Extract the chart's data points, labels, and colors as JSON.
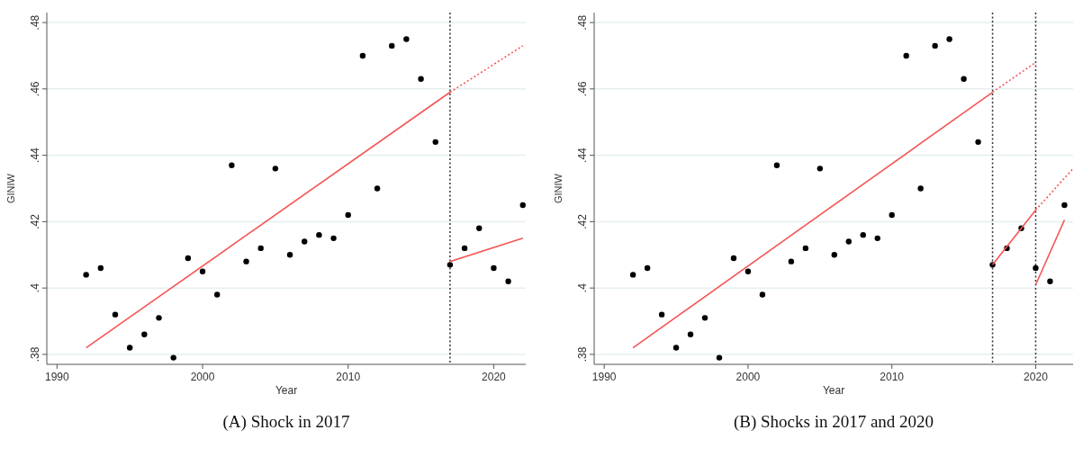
{
  "chart_data": [
    {
      "type": "scatter",
      "title": "(A) Shock in 2017",
      "xlabel": "Year",
      "ylabel": "GINIW",
      "grid": "y",
      "marker": "circle",
      "xlim": [
        1989.3,
        2022.2
      ],
      "xticks": [
        1990,
        2000,
        2010,
        2020
      ],
      "ylim": [
        0.377,
        0.483
      ],
      "yticks": [
        {
          "value": 0.38,
          "label": ".38"
        },
        {
          "value": 0.4,
          "label": ".4"
        },
        {
          "value": 0.42,
          "label": ".42"
        },
        {
          "value": 0.44,
          "label": ".44"
        },
        {
          "value": 0.46,
          "label": ".46"
        },
        {
          "value": 0.48,
          "label": ".48"
        }
      ],
      "ref_lines": [
        {
          "axis": "x",
          "value": 2017,
          "color": "#333333",
          "line_style": "dotted"
        }
      ],
      "series": [
        {
          "type": "scatter",
          "color": "#000000",
          "x": [
            1992,
            1993,
            1994,
            1995,
            1996,
            1997,
            1998,
            1999,
            2000,
            2001,
            2002,
            2003,
            2004,
            2005,
            2006,
            2007,
            2008,
            2009,
            2010,
            2011,
            2012,
            2013,
            2014,
            2015,
            2016,
            2017,
            2018,
            2019,
            2020,
            2021,
            2022
          ],
          "values": [
            0.404,
            0.406,
            0.392,
            0.382,
            0.386,
            0.391,
            0.379,
            0.409,
            0.405,
            0.398,
            0.437,
            0.408,
            0.412,
            0.436,
            0.41,
            0.414,
            0.416,
            0.415,
            0.422,
            0.47,
            0.43,
            0.473,
            0.475,
            0.463,
            0.444,
            0.407,
            0.412,
            0.418,
            0.406,
            0.402,
            0.425
          ]
        },
        {
          "type": "line",
          "marker": "none",
          "color": "#f55555",
          "line_style": "solid",
          "x": [
            1992,
            2017
          ],
          "values": [
            0.382,
            0.459
          ]
        },
        {
          "type": "line",
          "marker": "none",
          "color": "#f55555",
          "line_style": "dotted",
          "x": [
            2017,
            2022
          ],
          "values": [
            0.459,
            0.473
          ]
        },
        {
          "type": "line",
          "marker": "none",
          "color": "#f55555",
          "line_style": "solid",
          "x": [
            2017,
            2022
          ],
          "values": [
            0.408,
            0.415
          ]
        }
      ]
    },
    {
      "type": "scatter",
      "title": "(B) Shocks in 2017 and 2020",
      "xlabel": "Year",
      "ylabel": "GINIW",
      "grid": "y",
      "marker": "circle",
      "xlim": [
        1989.3,
        2022.6
      ],
      "xticks": [
        1990,
        2000,
        2010,
        2020
      ],
      "ylim": [
        0.377,
        0.483
      ],
      "yticks": [
        {
          "value": 0.38,
          "label": ".38"
        },
        {
          "value": 0.4,
          "label": ".4"
        },
        {
          "value": 0.42,
          "label": ".42"
        },
        {
          "value": 0.44,
          "label": ".44"
        },
        {
          "value": 0.46,
          "label": ".46"
        },
        {
          "value": 0.48,
          "label": ".48"
        }
      ],
      "ref_lines": [
        {
          "axis": "x",
          "value": 2017,
          "color": "#333333",
          "line_style": "dotted"
        },
        {
          "axis": "x",
          "value": 2020,
          "color": "#333333",
          "line_style": "dotted"
        }
      ],
      "series": [
        {
          "type": "scatter",
          "color": "#000000",
          "x": [
            1992,
            1993,
            1994,
            1995,
            1996,
            1997,
            1998,
            1999,
            2000,
            2001,
            2002,
            2003,
            2004,
            2005,
            2006,
            2007,
            2008,
            2009,
            2010,
            2011,
            2012,
            2013,
            2014,
            2015,
            2016,
            2017,
            2018,
            2019,
            2020,
            2021,
            2022
          ],
          "values": [
            0.404,
            0.406,
            0.392,
            0.382,
            0.386,
            0.391,
            0.379,
            0.409,
            0.405,
            0.398,
            0.437,
            0.408,
            0.412,
            0.436,
            0.41,
            0.414,
            0.416,
            0.415,
            0.422,
            0.47,
            0.43,
            0.473,
            0.475,
            0.463,
            0.444,
            0.407,
            0.412,
            0.418,
            0.406,
            0.402,
            0.425
          ]
        },
        {
          "type": "line",
          "marker": "none",
          "color": "#f55555",
          "line_style": "solid",
          "x": [
            1992,
            2017
          ],
          "values": [
            0.382,
            0.459
          ]
        },
        {
          "type": "line",
          "marker": "none",
          "color": "#f55555",
          "line_style": "dotted",
          "x": [
            2017,
            2020
          ],
          "values": [
            0.459,
            0.468
          ]
        },
        {
          "type": "line",
          "marker": "none",
          "color": "#f55555",
          "line_style": "solid",
          "x": [
            2017,
            2020
          ],
          "values": [
            0.407,
            0.4235
          ]
        },
        {
          "type": "line",
          "marker": "none",
          "color": "#f55555",
          "line_style": "dotted",
          "x": [
            2020,
            2022.6
          ],
          "values": [
            0.4235,
            0.436
          ]
        },
        {
          "type": "line",
          "marker": "none",
          "color": "#f55555",
          "line_style": "solid",
          "x": [
            2020,
            2022
          ],
          "values": [
            0.401,
            0.4205
          ]
        }
      ]
    }
  ]
}
